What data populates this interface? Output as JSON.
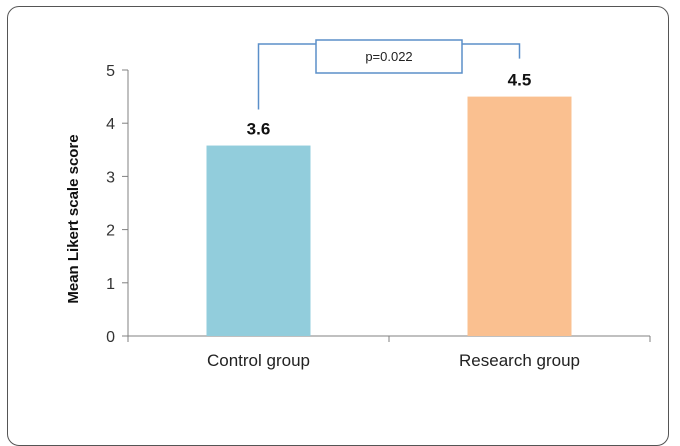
{
  "chart_data": {
    "type": "bar",
    "categories": [
      "Control group",
      "Research group"
    ],
    "values": [
      3.58,
      4.5
    ],
    "data_labels": [
      "3.6",
      "4.5"
    ],
    "ylabel": "Mean Likert scale score",
    "ylim": [
      0,
      5
    ],
    "yticks": [
      "0",
      "1",
      "2",
      "3",
      "4",
      "5"
    ],
    "grid": false,
    "legend": "none",
    "annotation": {
      "text": "p=0.022",
      "between": [
        "Control group",
        "Research group"
      ]
    },
    "colors": {
      "bars": [
        "#92CDDC",
        "#FAC090"
      ],
      "bracket": "#5B8FC9",
      "axis": "#808080"
    }
  }
}
